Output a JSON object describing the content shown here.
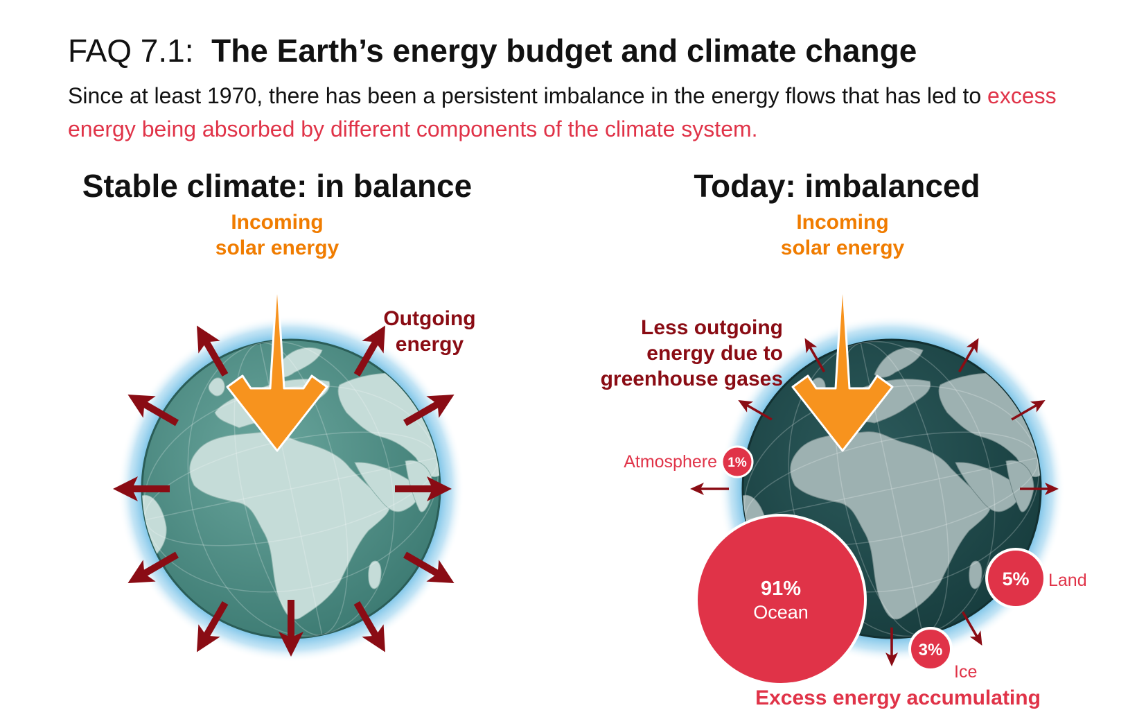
{
  "header": {
    "title_prefix": "FAQ 7.1:",
    "title_main": "The Earth’s energy budget and climate change",
    "subtitle_plain": "Since at least 1970, there has been a persistent imbalance in the energy flows that has led to ",
    "subtitle_highlight": "excess energy being absorbed by different components of the climate system."
  },
  "left_panel": {
    "heading": "Stable climate: in balance",
    "incoming_line1": "Incoming",
    "incoming_line2": "solar energy",
    "outgoing_line1": "Outgoing",
    "outgoing_line2": "energy"
  },
  "right_panel": {
    "heading": "Today: imbalanced",
    "incoming_line1": "Incoming",
    "incoming_line2": "solar energy",
    "less_line1": "Less outgoing",
    "less_line2": "energy due to",
    "less_line3": "greenhouse gases",
    "footer": "Excess energy accumulating",
    "components": {
      "ocean": {
        "pct": 91,
        "pct_label": "91%",
        "name": "Ocean"
      },
      "land": {
        "pct": 5,
        "pct_label": "5%",
        "name": "Land"
      },
      "ice": {
        "pct": 3,
        "pct_label": "3%",
        "name": "Ice"
      },
      "atmosphere": {
        "pct": 1,
        "pct_label": "1%",
        "name": "Atmosphere"
      }
    }
  },
  "colors": {
    "solar": "#f7931e",
    "outgoing": "#8a0c14",
    "excess": "#e03348",
    "earth_stable": "#4e8c84",
    "earth_today": "#1e4849",
    "glow": "#7cc4e8"
  }
}
